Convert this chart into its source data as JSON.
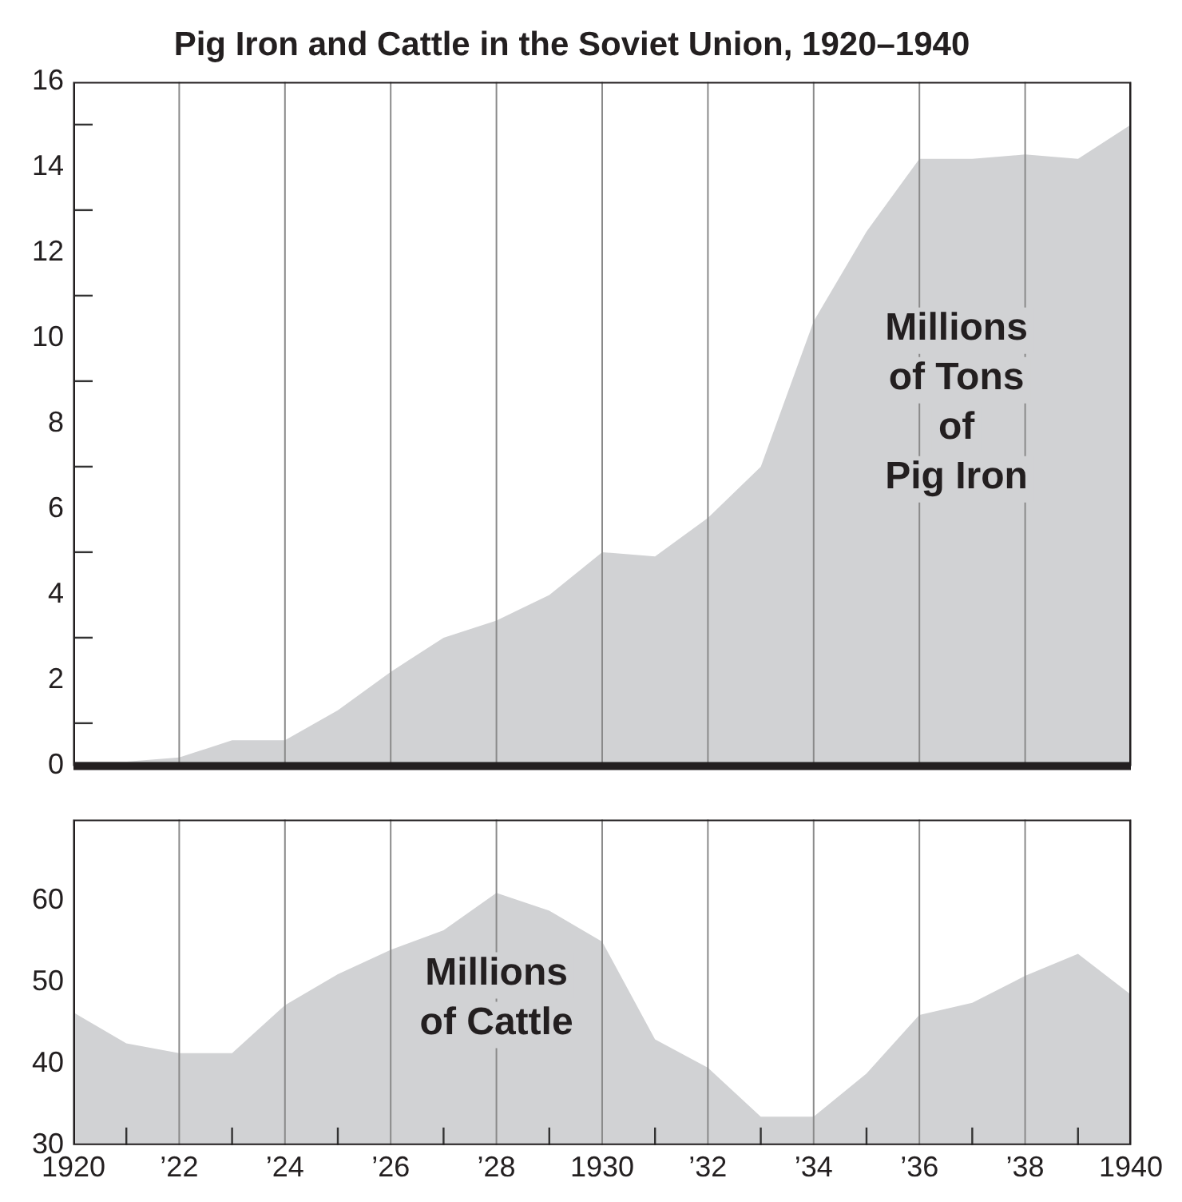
{
  "chart_data": [
    {
      "type": "area",
      "title": "Pig Iron and Cattle in the Soviet Union, 1920–1940",
      "annotations": [
        "Millions\nof Tons\nof\nPig Iron"
      ],
      "x": [
        1920,
        1921,
        1922,
        1923,
        1924,
        1925,
        1926,
        1927,
        1928,
        1929,
        1930,
        1931,
        1932,
        1933,
        1934,
        1935,
        1936,
        1937,
        1938,
        1939,
        1940
      ],
      "series": [
        {
          "color": "#d1d2d4",
          "values": [
            0.1,
            0.1,
            0.2,
            0.6,
            0.6,
            1.3,
            2.2,
            3.0,
            3.4,
            4.0,
            5.0,
            4.9,
            5.8,
            7.0,
            10.4,
            12.5,
            14.2,
            14.2,
            14.3,
            14.2,
            15.0
          ]
        }
      ],
      "xlim": [
        1920,
        1940
      ],
      "xticks": [
        1920,
        1922,
        1924,
        1926,
        1928,
        1930,
        1932,
        1934,
        1936,
        1938,
        1940
      ],
      "ylim": [
        0,
        16
      ],
      "yticks": [
        0,
        {
          "value": 1,
          "label": null
        },
        2,
        {
          "value": 3,
          "label": null
        },
        4,
        {
          "value": 5,
          "label": null
        },
        6,
        {
          "value": 7,
          "label": null
        },
        8,
        {
          "value": 9,
          "label": null
        },
        10,
        {
          "value": 11,
          "label": null
        },
        12,
        {
          "value": 13,
          "label": null
        },
        14,
        {
          "value": 15,
          "label": null
        },
        16
      ],
      "grid": "x",
      "tick_labels": "y"
    },
    {
      "type": "area",
      "annotations": [
        "Millions\nof Cattle"
      ],
      "x": [
        1920,
        1921,
        1922,
        1923,
        1924,
        1925,
        1926,
        1927,
        1928,
        1929,
        1930,
        1931,
        1932,
        1933,
        1934,
        1935,
        1936,
        1937,
        1938,
        1939,
        1940
      ],
      "series": [
        {
          "color": "#d1d2d4",
          "values": [
            46.3,
            42.5,
            41.3,
            41.3,
            47.2,
            51.0,
            54.0,
            56.4,
            61.0,
            58.8,
            55.0,
            43.0,
            39.5,
            33.5,
            33.5,
            38.8,
            46.0,
            47.5,
            50.8,
            53.5,
            48.5
          ]
        }
      ],
      "xlim": [
        1920,
        1940
      ],
      "xticks": [
        1920,
        {
          "value": 1921,
          "label": null
        },
        {
          "value": 1922,
          "label": "’22"
        },
        {
          "value": 1923,
          "label": null
        },
        {
          "value": 1924,
          "label": "’24"
        },
        {
          "value": 1925,
          "label": null
        },
        {
          "value": 1926,
          "label": "’26"
        },
        {
          "value": 1927,
          "label": null
        },
        {
          "value": 1928,
          "label": "’28"
        },
        {
          "value": 1929,
          "label": null
        },
        1930,
        {
          "value": 1931,
          "label": null
        },
        {
          "value": 1932,
          "label": "’32"
        },
        {
          "value": 1933,
          "label": null
        },
        {
          "value": 1934,
          "label": "’34"
        },
        {
          "value": 1935,
          "label": null
        },
        {
          "value": 1936,
          "label": "’36"
        },
        {
          "value": 1937,
          "label": null
        },
        {
          "value": 1938,
          "label": "’38"
        },
        {
          "value": 1939,
          "label": null
        },
        1940
      ],
      "ylim": [
        30,
        70
      ],
      "yticks": [
        30,
        40,
        50,
        60
      ],
      "grid": "x"
    }
  ]
}
